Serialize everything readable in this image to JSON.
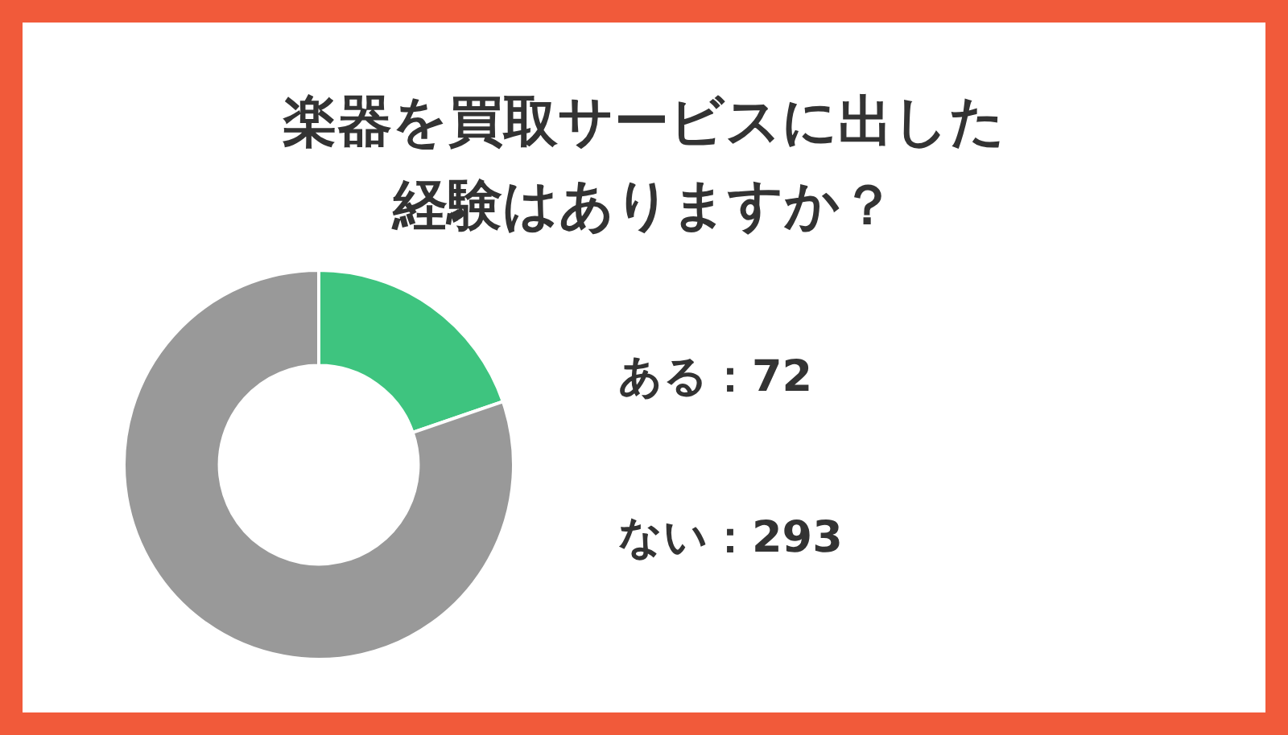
{
  "chart_data": {
    "type": "donut",
    "title": "楽器を買取サービスに出した経験はありますか？",
    "categories": [
      "ある：72",
      "ない：293"
    ],
    "values": [
      72,
      293
    ],
    "colors": [
      "#3ec47f",
      "#999999"
    ]
  }
}
